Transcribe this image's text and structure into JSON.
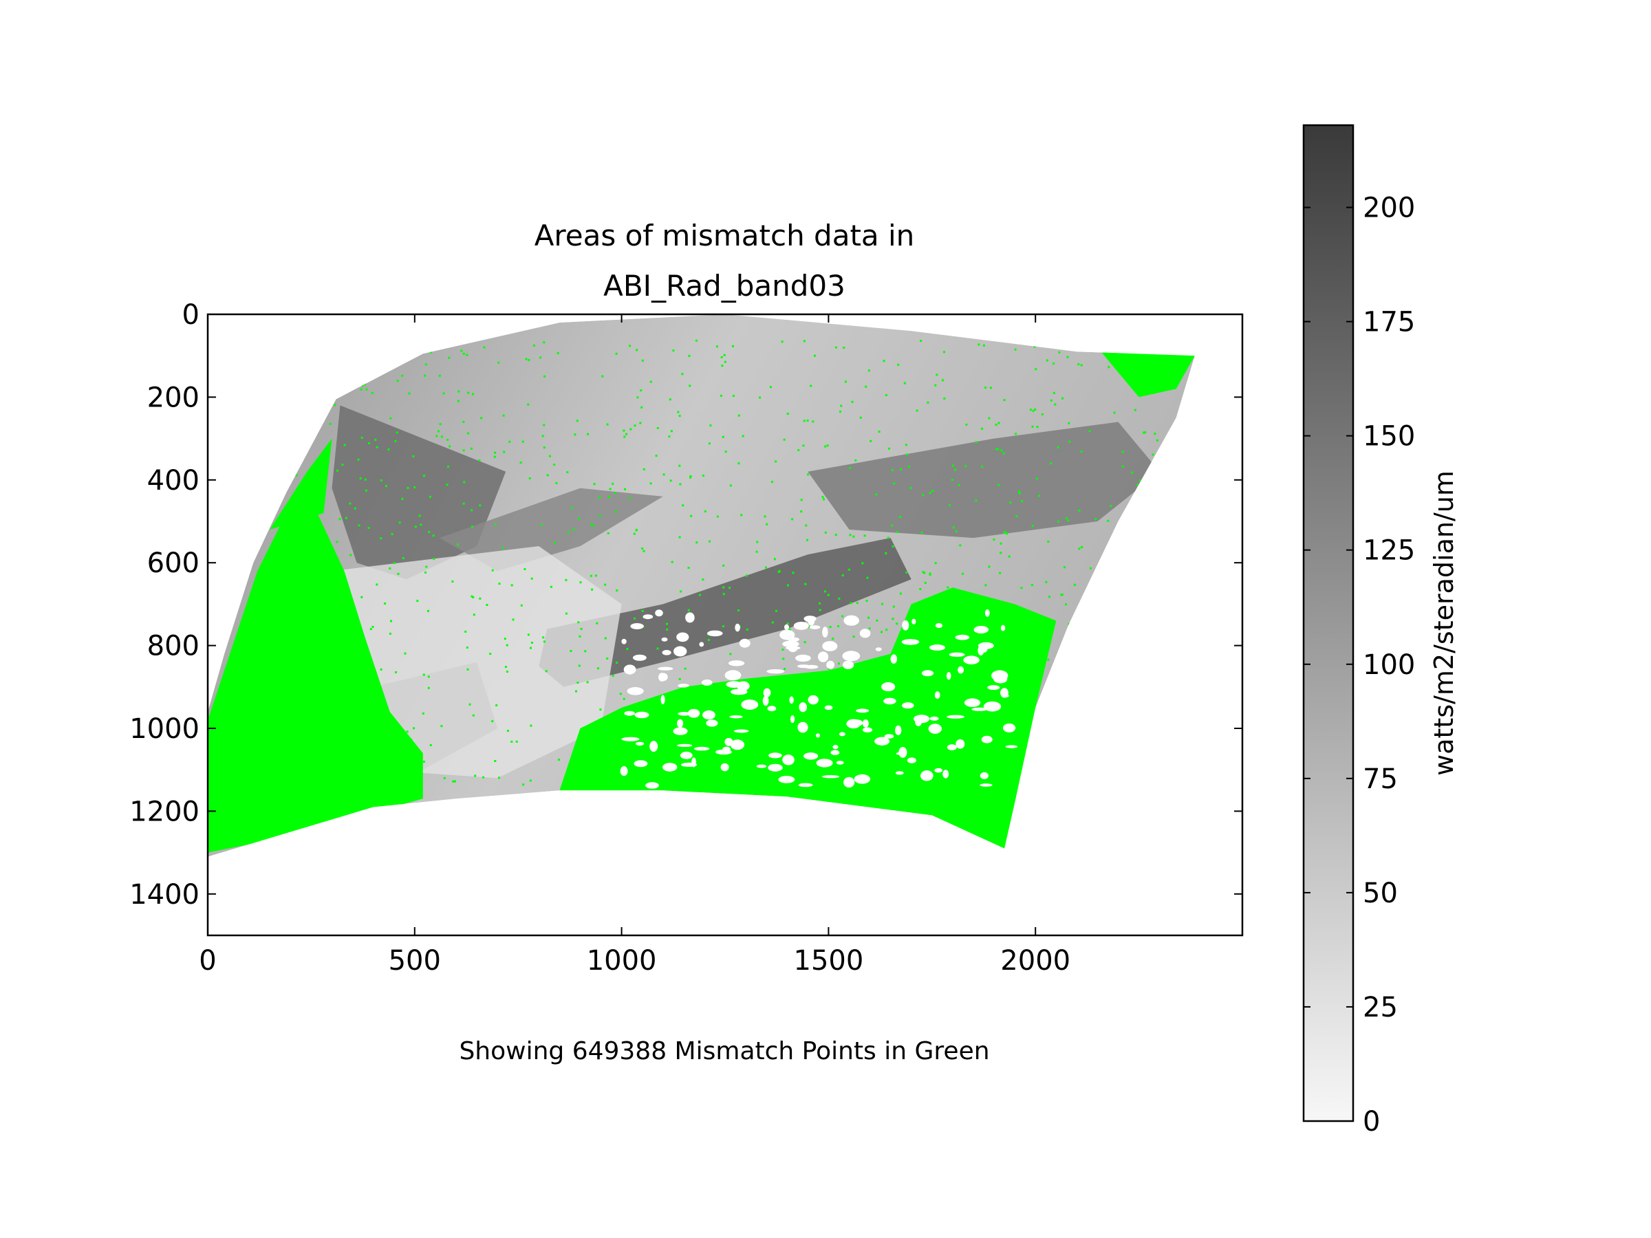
{
  "chart_data": {
    "type": "heatmap",
    "title": "Areas of mismatch data in\nABI_Rad_band03",
    "title_lines": [
      "Areas of mismatch data in",
      "ABI_Rad_band03"
    ],
    "xlabel": "Showing 649388 Mismatch Points in Green",
    "ylabel": "",
    "xlim": [
      0,
      2500
    ],
    "ylim": [
      1500,
      0
    ],
    "xticks": [
      0,
      500,
      1000,
      1500,
      2000
    ],
    "yticks": [
      0,
      200,
      400,
      600,
      800,
      1000,
      1200,
      1400
    ],
    "y_inverted": true,
    "mismatch_points": 649388,
    "mismatch_color": "#00ff00",
    "colormap": "gray_r",
    "colorbar": {
      "label": "watts/m2/steradian/um",
      "range": [
        0,
        218
      ],
      "ticks": [
        0,
        25,
        50,
        75,
        100,
        125,
        150,
        175,
        200
      ],
      "color_low": "#f7f7f7",
      "color_high": "#3a3a3a"
    }
  }
}
